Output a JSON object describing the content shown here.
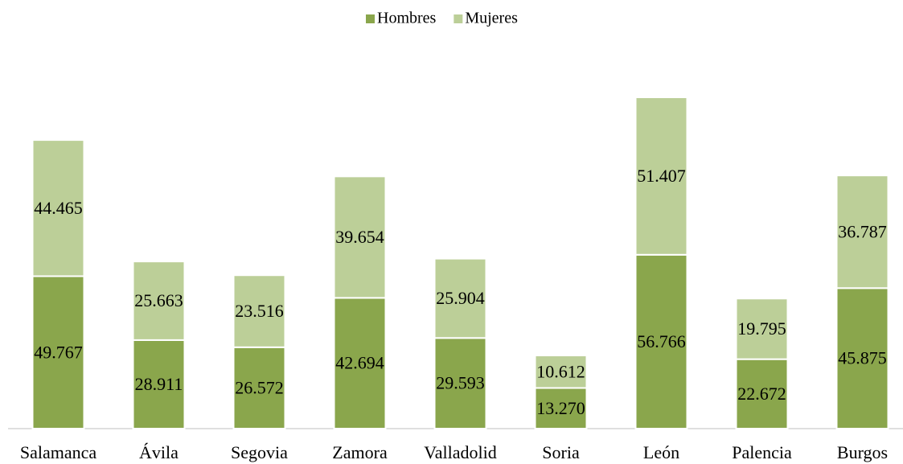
{
  "chart_data": {
    "type": "stacked_bar",
    "categories": [
      "Salamanca",
      "Ávila",
      "Segovia",
      "Zamora",
      "Valladolid",
      "Soria",
      "León",
      "Palencia",
      "Burgos"
    ],
    "series": [
      {
        "name": "Hombres",
        "color": "#8aa64c",
        "values": [
          49767,
          28911,
          26572,
          42694,
          29593,
          13270,
          56766,
          22672,
          45875
        ],
        "value_labels": [
          "49.767",
          "28.911",
          "26.572",
          "42.694",
          "29.593",
          "13.270",
          "56.766",
          "22.672",
          "45.875"
        ]
      },
      {
        "name": "Mujeres",
        "color": "#bccf98",
        "values": [
          44465,
          25663,
          23516,
          39654,
          25904,
          10612,
          51407,
          19795,
          36787
        ],
        "value_labels": [
          "44.465",
          "25.663",
          "23.516",
          "39.654",
          "25.904",
          "10.612",
          "51.407",
          "19.795",
          "36.787"
        ]
      }
    ],
    "legend": "top"
  }
}
